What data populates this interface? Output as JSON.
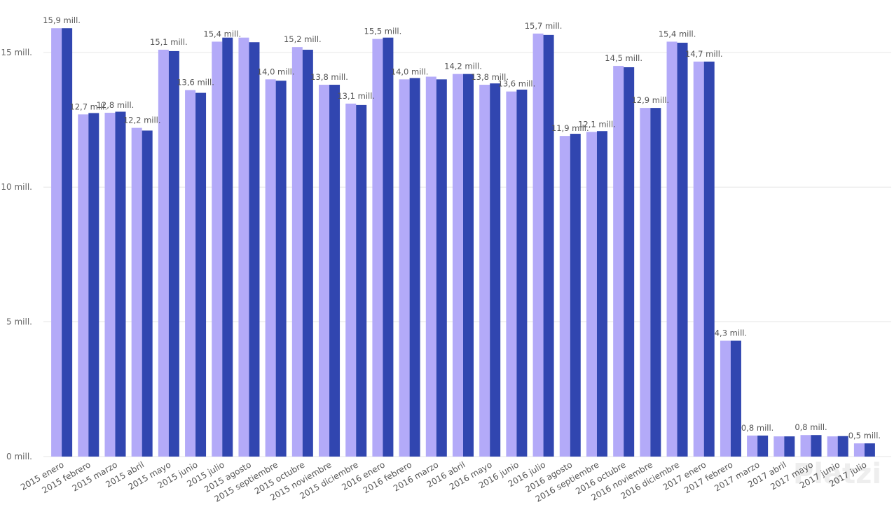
{
  "chart_data": {
    "type": "bar",
    "categories": [
      "2015 enero",
      "2015 febrero",
      "2015 marzo",
      "2015 abril",
      "2015 mayo",
      "2015 junio",
      "2015 julio",
      "2015 agosto",
      "2015 septiembre",
      "2015 octubre",
      "2015 noviembre",
      "2015 diciembre",
      "2016 enero",
      "2016 febrero",
      "2016 marzo",
      "2016 abril",
      "2016 mayo",
      "2016 junio",
      "2016 julio",
      "2016 agosto",
      "2016 septiembre",
      "2016 octubre",
      "2016 noviembre",
      "2016 diciembre",
      "2017 enero",
      "2017 febrero",
      "2017 marzo",
      "2017 abril",
      "2017 mayo",
      "2017 junio",
      "2017 julio"
    ],
    "series": [
      {
        "color": "#b3aaf8",
        "values": [
          15.9,
          12.7,
          12.76,
          12.2,
          15.1,
          13.6,
          15.4,
          15.55,
          14.0,
          15.2,
          13.8,
          13.1,
          15.5,
          14.0,
          14.1,
          14.2,
          13.8,
          13.55,
          15.7,
          11.9,
          12.05,
          14.5,
          12.94,
          15.4,
          14.66,
          4.3,
          0.78,
          0.75,
          0.8,
          0.75,
          0.49
        ],
        "value_labels": [
          "15,9 mill.",
          "12,7 mill.",
          "12,8 mill.",
          "12,2 mill.",
          "15,1 mill.",
          "13,6 mill.",
          "15,4 mill.",
          null,
          "14,0 mill.",
          "15,2 mill.",
          "13,8 mill.",
          "13,1 mill.",
          "15,5 mill.",
          "14,0 mill.",
          null,
          "14,2 mill.",
          "13,8 mill.",
          "13,6 mill.",
          "15,7 mill.",
          "11,9 mill.",
          "12,1 mill.",
          "14,5 mill.",
          "12,9 mill.",
          "15,4 mill.",
          "14,7 mill.",
          "4,3 mill.",
          "0,8 mill.",
          null,
          "0,8 mill.",
          null,
          "0,5 mill."
        ]
      },
      {
        "color": "#3146b0",
        "values": [
          15.9,
          12.75,
          12.8,
          12.1,
          15.05,
          13.5,
          15.55,
          15.38,
          13.95,
          15.1,
          13.8,
          13.05,
          15.55,
          14.05,
          14.0,
          14.2,
          13.85,
          13.62,
          15.65,
          11.98,
          12.08,
          14.45,
          12.94,
          15.36,
          14.66,
          4.3,
          0.78,
          0.75,
          0.8,
          0.76,
          0.49
        ]
      }
    ],
    "ylim": [
      0,
      16.4
    ],
    "yticks": [
      {
        "value": 0,
        "label": "0 mill."
      },
      {
        "value": 5,
        "label": "5 mill."
      },
      {
        "value": 10,
        "label": "10 mill."
      },
      {
        "value": 15,
        "label": "15 mill."
      }
    ],
    "grid": true,
    "watermark": "Platzi"
  }
}
